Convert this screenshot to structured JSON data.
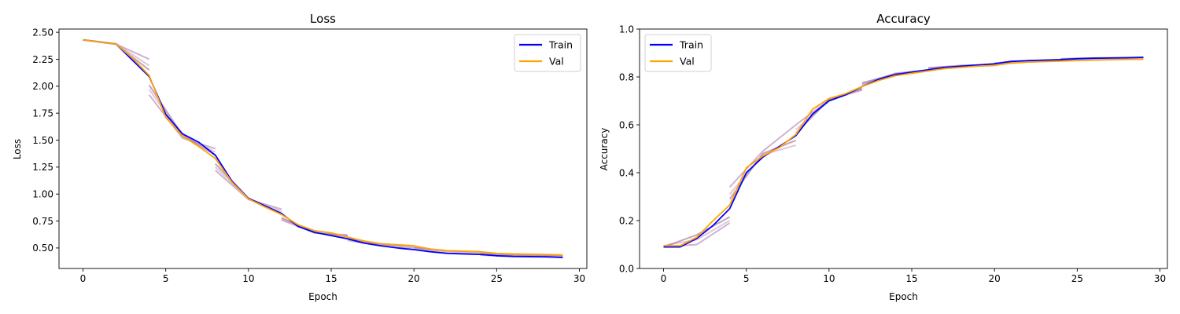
{
  "chart_data": [
    {
      "id": "loss",
      "type": "line",
      "title": "Loss",
      "xlabel": "Epoch",
      "ylabel": "Loss",
      "xlim": [
        -1.45,
        30.45
      ],
      "ylim": [
        0.31,
        2.53
      ],
      "xticks": [
        0,
        5,
        10,
        15,
        20,
        25,
        30
      ],
      "xtick_labels": [
        "0",
        "5",
        "10",
        "15",
        "20",
        "25",
        "30"
      ],
      "yticks": [
        0.5,
        0.75,
        1.0,
        1.25,
        1.5,
        1.75,
        2.0,
        2.25,
        2.5
      ],
      "ytick_labels": [
        "0.50",
        "0.75",
        "1.00",
        "1.25",
        "1.50",
        "1.75",
        "2.00",
        "2.25",
        "2.50"
      ],
      "grid": false,
      "legend": {
        "position": "top-right",
        "entries": [
          {
            "label": "Train",
            "color": "#0000ff"
          },
          {
            "label": "Val",
            "color": "#ffa500"
          }
        ]
      },
      "faded_runs": [
        {
          "color": "#b07fb0",
          "segments": [
            [
              [
                0,
                2.43
              ],
              [
                2,
                2.39
              ],
              [
                4,
                2.25
              ]
            ],
            [
              [
                4,
                1.92
              ],
              [
                6,
                1.52
              ],
              [
                8,
                1.42
              ]
            ],
            [
              [
                8,
                1.22
              ],
              [
                10,
                0.95
              ],
              [
                12,
                0.86
              ]
            ],
            [
              [
                12,
                0.76
              ],
              [
                14,
                0.64
              ],
              [
                16,
                0.62
              ]
            ],
            [
              [
                16,
                0.57
              ],
              [
                18,
                0.52
              ],
              [
                20,
                0.5
              ]
            ],
            [
              [
                20,
                0.49
              ],
              [
                22,
                0.455
              ],
              [
                24,
                0.445
              ]
            ],
            [
              [
                24,
                0.435
              ],
              [
                26,
                0.42
              ],
              [
                29,
                0.415
              ]
            ]
          ]
        },
        {
          "color": "#c8a4c8",
          "segments": [
            [
              [
                0,
                2.43
              ],
              [
                2,
                2.395
              ],
              [
                4,
                2.19
              ]
            ],
            [
              [
                4,
                1.97
              ],
              [
                6,
                1.54
              ],
              [
                8,
                1.39
              ]
            ],
            [
              [
                8,
                1.25
              ],
              [
                10,
                0.96
              ],
              [
                12,
                0.84
              ]
            ],
            [
              [
                12,
                0.77
              ],
              [
                14,
                0.645
              ],
              [
                16,
                0.6
              ]
            ],
            [
              [
                16,
                0.58
              ],
              [
                18,
                0.53
              ],
              [
                20,
                0.51
              ]
            ],
            [
              [
                20,
                0.5
              ],
              [
                22,
                0.47
              ],
              [
                24,
                0.46
              ]
            ],
            [
              [
                24,
                0.445
              ],
              [
                26,
                0.43
              ],
              [
                29,
                0.425
              ]
            ]
          ]
        },
        {
          "color": "#9a6a8f",
          "segments": [
            [
              [
                0,
                2.43
              ],
              [
                2,
                2.39
              ],
              [
                4,
                2.15
              ]
            ],
            [
              [
                4,
                2.01
              ],
              [
                6,
                1.55
              ],
              [
                8,
                1.36
              ]
            ],
            [
              [
                8,
                1.28
              ],
              [
                10,
                0.96
              ],
              [
                12,
                0.82
              ]
            ],
            [
              [
                12,
                0.78
              ],
              [
                14,
                0.64
              ],
              [
                16,
                0.61
              ]
            ],
            [
              [
                16,
                0.585
              ],
              [
                18,
                0.535
              ],
              [
                20,
                0.52
              ]
            ],
            [
              [
                20,
                0.505
              ],
              [
                22,
                0.475
              ],
              [
                24,
                0.465
              ]
            ],
            [
              [
                24,
                0.45
              ],
              [
                26,
                0.435
              ],
              [
                29,
                0.43
              ]
            ]
          ]
        }
      ],
      "series": [
        {
          "name": "Train",
          "color": "#0000ff",
          "x": [
            0,
            1,
            2,
            3,
            4,
            5,
            6,
            7,
            8,
            9,
            10,
            11,
            12,
            13,
            14,
            15,
            16,
            17,
            18,
            19,
            20,
            21,
            22,
            23,
            24,
            25,
            26,
            27,
            28,
            29
          ],
          "y": [
            2.43,
            2.41,
            2.39,
            2.24,
            2.09,
            1.74,
            1.56,
            1.48,
            1.36,
            1.12,
            0.96,
            0.89,
            0.82,
            0.7,
            0.645,
            0.615,
            0.585,
            0.545,
            0.52,
            0.5,
            0.485,
            0.465,
            0.45,
            0.445,
            0.44,
            0.428,
            0.422,
            0.42,
            0.418,
            0.412
          ]
        },
        {
          "name": "Val",
          "color": "#ffa500",
          "x": [
            0,
            1,
            2,
            3,
            4,
            5,
            6,
            7,
            8,
            9,
            10,
            11,
            12,
            13,
            14,
            15,
            16,
            17,
            18,
            19,
            20,
            21,
            22,
            23,
            24,
            25,
            26,
            27,
            28,
            29
          ],
          "y": [
            2.43,
            2.41,
            2.39,
            2.26,
            2.1,
            1.71,
            1.54,
            1.44,
            1.33,
            1.11,
            0.955,
            0.88,
            0.81,
            0.715,
            0.66,
            0.64,
            0.6,
            0.565,
            0.54,
            0.53,
            0.52,
            0.49,
            0.475,
            0.47,
            0.465,
            0.45,
            0.445,
            0.443,
            0.44,
            0.435
          ]
        }
      ]
    },
    {
      "id": "accuracy",
      "type": "line",
      "title": "Accuracy",
      "xlabel": "Epoch",
      "ylabel": "Accuracy",
      "xlim": [
        -1.45,
        30.45
      ],
      "ylim": [
        0.0,
        1.0
      ],
      "xticks": [
        0,
        5,
        10,
        15,
        20,
        25,
        30
      ],
      "xtick_labels": [
        "0",
        "5",
        "10",
        "15",
        "20",
        "25",
        "30"
      ],
      "yticks": [
        0.0,
        0.2,
        0.4,
        0.6,
        0.8,
        1.0
      ],
      "ytick_labels": [
        "0.0",
        "0.2",
        "0.4",
        "0.6",
        "0.8",
        "1.0"
      ],
      "grid": false,
      "legend": {
        "position": "top-left",
        "entries": [
          {
            "label": "Train",
            "color": "#0000ff"
          },
          {
            "label": "Val",
            "color": "#ffa500"
          }
        ]
      },
      "faded_runs": [
        {
          "color": "#b07fb0",
          "segments": [
            [
              [
                0,
                0.09
              ],
              [
                2,
                0.1
              ],
              [
                4,
                0.19
              ]
            ],
            [
              [
                4,
                0.34
              ],
              [
                6,
                0.49
              ],
              [
                8,
                0.6
              ]
            ],
            [
              [
                8,
                0.6
              ],
              [
                10,
                0.705
              ],
              [
                12,
                0.745
              ]
            ],
            [
              [
                12,
                0.77
              ],
              [
                14,
                0.815
              ],
              [
                16,
                0.83
              ]
            ],
            [
              [
                16,
                0.835
              ],
              [
                18,
                0.845
              ],
              [
                20,
                0.85
              ]
            ],
            [
              [
                20,
                0.855
              ],
              [
                22,
                0.865
              ],
              [
                24,
                0.87
              ]
            ],
            [
              [
                24,
                0.875
              ],
              [
                26,
                0.878
              ],
              [
                29,
                0.88
              ]
            ]
          ]
        },
        {
          "color": "#c8a4c8",
          "segments": [
            [
              [
                0,
                0.095
              ],
              [
                2,
                0.12
              ],
              [
                4,
                0.2
              ]
            ],
            [
              [
                4,
                0.31
              ],
              [
                6,
                0.475
              ],
              [
                8,
                0.515
              ]
            ],
            [
              [
                8,
                0.58
              ],
              [
                10,
                0.7
              ],
              [
                12,
                0.755
              ]
            ],
            [
              [
                12,
                0.765
              ],
              [
                14,
                0.81
              ],
              [
                16,
                0.825
              ]
            ],
            [
              [
                16,
                0.83
              ],
              [
                18,
                0.842
              ],
              [
                20,
                0.848
              ]
            ],
            [
              [
                20,
                0.852
              ],
              [
                22,
                0.862
              ],
              [
                24,
                0.867
              ]
            ],
            [
              [
                24,
                0.87
              ],
              [
                26,
                0.873
              ],
              [
                29,
                0.876
              ]
            ]
          ]
        },
        {
          "color": "#9a6a8f",
          "segments": [
            [
              [
                0,
                0.09
              ],
              [
                2,
                0.14
              ],
              [
                4,
                0.215
              ]
            ],
            [
              [
                4,
                0.29
              ],
              [
                6,
                0.48
              ],
              [
                8,
                0.535
              ]
            ],
            [
              [
                8,
                0.565
              ],
              [
                10,
                0.705
              ],
              [
                12,
                0.75
              ]
            ],
            [
              [
                12,
                0.775
              ],
              [
                14,
                0.812
              ],
              [
                16,
                0.828
              ]
            ],
            [
              [
                16,
                0.838
              ],
              [
                18,
                0.848
              ],
              [
                20,
                0.852
              ]
            ],
            [
              [
                20,
                0.858
              ],
              [
                22,
                0.868
              ],
              [
                24,
                0.872
              ]
            ],
            [
              [
                24,
                0.876
              ],
              [
                26,
                0.879
              ],
              [
                29,
                0.882
              ]
            ]
          ]
        }
      ],
      "series": [
        {
          "name": "Train",
          "color": "#0000ff",
          "x": [
            0,
            1,
            2,
            3,
            4,
            5,
            6,
            7,
            8,
            9,
            10,
            11,
            12,
            13,
            14,
            15,
            16,
            17,
            18,
            19,
            20,
            21,
            22,
            23,
            24,
            25,
            26,
            27,
            28,
            29
          ],
          "y": [
            0.09,
            0.09,
            0.125,
            0.18,
            0.25,
            0.4,
            0.465,
            0.51,
            0.555,
            0.645,
            0.7,
            0.725,
            0.76,
            0.79,
            0.81,
            0.82,
            0.83,
            0.84,
            0.845,
            0.85,
            0.855,
            0.865,
            0.868,
            0.87,
            0.872,
            0.876,
            0.878,
            0.879,
            0.88,
            0.882
          ]
        },
        {
          "name": "Val",
          "color": "#ffa500",
          "x": [
            0,
            1,
            2,
            3,
            4,
            5,
            6,
            7,
            8,
            9,
            10,
            11,
            12,
            13,
            14,
            15,
            16,
            17,
            18,
            19,
            20,
            21,
            22,
            23,
            24,
            25,
            26,
            27,
            28,
            29
          ],
          "y": [
            0.095,
            0.095,
            0.13,
            0.2,
            0.265,
            0.42,
            0.47,
            0.505,
            0.56,
            0.665,
            0.71,
            0.73,
            0.76,
            0.785,
            0.805,
            0.815,
            0.825,
            0.835,
            0.84,
            0.845,
            0.848,
            0.858,
            0.862,
            0.864,
            0.866,
            0.868,
            0.87,
            0.872,
            0.873,
            0.874
          ]
        }
      ]
    }
  ]
}
